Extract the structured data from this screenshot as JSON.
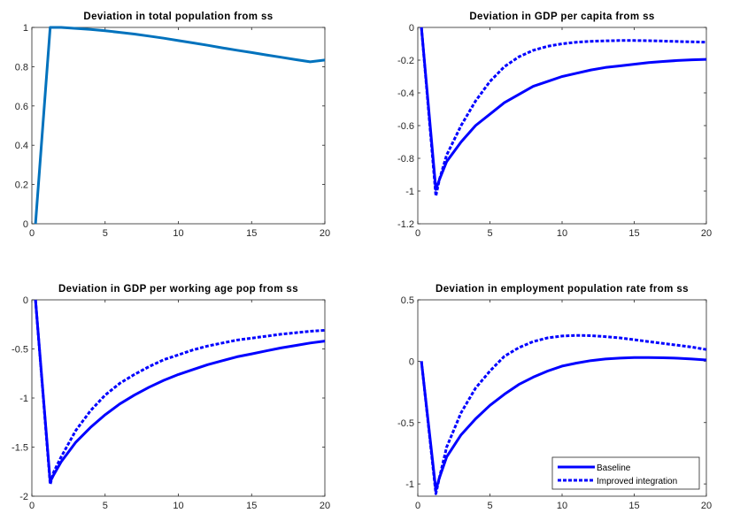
{
  "chart_data": [
    {
      "type": "line",
      "title": "Deviation in total population from ss",
      "xlabel": "",
      "ylabel": "",
      "xlim": [
        0,
        20
      ],
      "ylim": [
        0,
        1
      ],
      "xticks": [
        0,
        5,
        10,
        15,
        20
      ],
      "yticks": [
        0,
        0.2,
        0.4,
        0.6,
        0.8,
        1
      ],
      "yticklabels": [
        "0",
        "0.2",
        "0.4",
        "0.6",
        "0.8",
        "1"
      ],
      "grid": false,
      "series": [
        {
          "color": "#0072BD",
          "style": "solid",
          "points": [
            [
              0.25,
              0
            ],
            [
              1.25,
              1
            ],
            [
              2,
              1
            ],
            [
              3,
              0.995
            ],
            [
              4,
              0.99
            ],
            [
              5,
              0.983
            ],
            [
              6,
              0.975
            ],
            [
              7,
              0.966
            ],
            [
              8,
              0.956
            ],
            [
              9,
              0.945
            ],
            [
              10,
              0.933
            ],
            [
              11,
              0.921
            ],
            [
              12,
              0.909
            ],
            [
              13,
              0.896
            ],
            [
              14,
              0.884
            ],
            [
              15,
              0.872
            ],
            [
              16,
              0.86
            ],
            [
              17,
              0.848
            ],
            [
              18,
              0.836
            ],
            [
              19,
              0.825
            ],
            [
              20,
              0.834
            ]
          ]
        }
      ]
    },
    {
      "type": "line",
      "title": "Deviation in GDP per capita from ss",
      "xlabel": "",
      "ylabel": "",
      "xlim": [
        0,
        20
      ],
      "ylim": [
        -1.2,
        0
      ],
      "xticks": [
        0,
        5,
        10,
        15,
        20
      ],
      "yticks": [
        -1.2,
        -1,
        -0.8,
        -0.6,
        -0.4,
        -0.2,
        0
      ],
      "yticklabels": [
        "-1.2",
        "-1",
        "-0.8",
        "-0.6",
        "-0.4",
        "-0.2",
        "0"
      ],
      "grid": false,
      "series": [
        {
          "color": "#0000FF",
          "style": "solid",
          "points": [
            [
              0.25,
              0
            ],
            [
              1.25,
              -0.99
            ],
            [
              1.5,
              -0.93
            ],
            [
              2,
              -0.82
            ],
            [
              3,
              -0.7
            ],
            [
              4,
              -0.6
            ],
            [
              5,
              -0.53
            ],
            [
              6,
              -0.46
            ],
            [
              7,
              -0.41
            ],
            [
              8,
              -0.36
            ],
            [
              9,
              -0.33
            ],
            [
              10,
              -0.3
            ],
            [
              11,
              -0.28
            ],
            [
              12,
              -0.26
            ],
            [
              13,
              -0.245
            ],
            [
              14,
              -0.235
            ],
            [
              15,
              -0.225
            ],
            [
              16,
              -0.215
            ],
            [
              17,
              -0.208
            ],
            [
              18,
              -0.202
            ],
            [
              19,
              -0.198
            ],
            [
              20,
              -0.195
            ]
          ]
        },
        {
          "color": "#0000FF",
          "style": "dashed",
          "points": [
            [
              0.25,
              0
            ],
            [
              1.25,
              -1.03
            ],
            [
              1.5,
              -0.93
            ],
            [
              2,
              -0.78
            ],
            [
              3,
              -0.6
            ],
            [
              4,
              -0.45
            ],
            [
              5,
              -0.33
            ],
            [
              6,
              -0.24
            ],
            [
              7,
              -0.18
            ],
            [
              8,
              -0.14
            ],
            [
              9,
              -0.115
            ],
            [
              10,
              -0.1
            ],
            [
              11,
              -0.09
            ],
            [
              12,
              -0.085
            ],
            [
              13,
              -0.082
            ],
            [
              14,
              -0.08
            ],
            [
              15,
              -0.08
            ],
            [
              16,
              -0.081
            ],
            [
              17,
              -0.083
            ],
            [
              18,
              -0.086
            ],
            [
              19,
              -0.088
            ],
            [
              20,
              -0.09
            ]
          ]
        }
      ]
    },
    {
      "type": "line",
      "title": "Deviation in GDP per working age pop from ss",
      "xlabel": "",
      "ylabel": "",
      "xlim": [
        0,
        20
      ],
      "ylim": [
        -2,
        0
      ],
      "xticks": [
        0,
        5,
        10,
        15,
        20
      ],
      "yticks": [
        -2,
        -1.5,
        -1,
        -0.5,
        0
      ],
      "yticklabels": [
        "-2",
        "-1.5",
        "-1",
        "-0.5",
        "0"
      ],
      "grid": false,
      "series": [
        {
          "color": "#0000FF",
          "style": "solid",
          "points": [
            [
              0.25,
              0
            ],
            [
              1.25,
              -1.85
            ],
            [
              1.5,
              -1.78
            ],
            [
              2,
              -1.65
            ],
            [
              3,
              -1.45
            ],
            [
              4,
              -1.3
            ],
            [
              5,
              -1.17
            ],
            [
              6,
              -1.06
            ],
            [
              7,
              -0.97
            ],
            [
              8,
              -0.89
            ],
            [
              9,
              -0.82
            ],
            [
              10,
              -0.76
            ],
            [
              11,
              -0.71
            ],
            [
              12,
              -0.66
            ],
            [
              13,
              -0.62
            ],
            [
              14,
              -0.58
            ],
            [
              15,
              -0.55
            ],
            [
              16,
              -0.52
            ],
            [
              17,
              -0.49
            ],
            [
              18,
              -0.465
            ],
            [
              19,
              -0.44
            ],
            [
              20,
              -0.42
            ]
          ]
        },
        {
          "color": "#0000FF",
          "style": "dashed",
          "points": [
            [
              0.25,
              0
            ],
            [
              1.25,
              -1.88
            ],
            [
              1.5,
              -1.75
            ],
            [
              2,
              -1.6
            ],
            [
              3,
              -1.33
            ],
            [
              4,
              -1.13
            ],
            [
              5,
              -0.97
            ],
            [
              6,
              -0.85
            ],
            [
              7,
              -0.76
            ],
            [
              8,
              -0.68
            ],
            [
              9,
              -0.61
            ],
            [
              10,
              -0.56
            ],
            [
              11,
              -0.51
            ],
            [
              12,
              -0.47
            ],
            [
              13,
              -0.44
            ],
            [
              14,
              -0.41
            ],
            [
              15,
              -0.39
            ],
            [
              16,
              -0.37
            ],
            [
              17,
              -0.35
            ],
            [
              18,
              -0.335
            ],
            [
              19,
              -0.32
            ],
            [
              20,
              -0.31
            ]
          ]
        }
      ]
    },
    {
      "type": "line",
      "title": "Deviation in employment population rate from ss",
      "xlabel": "",
      "ylabel": "",
      "xlim": [
        0,
        20
      ],
      "ylim": [
        -1.1,
        0.5
      ],
      "xticks": [
        0,
        5,
        10,
        15,
        20
      ],
      "yticks": [
        -1,
        -0.5,
        0,
        0.5
      ],
      "yticklabels": [
        "-1",
        "-0.5",
        "0",
        "0.5"
      ],
      "grid": false,
      "legend": {
        "position": "bottom-right",
        "entries": [
          "Baseline",
          "Improved integration"
        ]
      },
      "series": [
        {
          "name": "Baseline",
          "color": "#0000FF",
          "style": "solid",
          "points": [
            [
              0.25,
              0
            ],
            [
              1.25,
              -1.05
            ],
            [
              1.5,
              -0.95
            ],
            [
              2,
              -0.78
            ],
            [
              3,
              -0.6
            ],
            [
              4,
              -0.47
            ],
            [
              5,
              -0.36
            ],
            [
              6,
              -0.27
            ],
            [
              7,
              -0.19
            ],
            [
              8,
              -0.13
            ],
            [
              9,
              -0.08
            ],
            [
              10,
              -0.04
            ],
            [
              11,
              -0.015
            ],
            [
              12,
              0.005
            ],
            [
              13,
              0.018
            ],
            [
              14,
              0.025
            ],
            [
              15,
              0.03
            ],
            [
              16,
              0.03
            ],
            [
              17,
              0.028
            ],
            [
              18,
              0.024
            ],
            [
              19,
              0.018
            ],
            [
              20,
              0.01
            ]
          ]
        },
        {
          "name": "Improved integration",
          "color": "#0000FF",
          "style": "dashed",
          "points": [
            [
              0.25,
              0
            ],
            [
              1.25,
              -1.08
            ],
            [
              1.5,
              -0.95
            ],
            [
              2,
              -0.7
            ],
            [
              3,
              -0.42
            ],
            [
              4,
              -0.22
            ],
            [
              5,
              -0.08
            ],
            [
              6,
              0.04
            ],
            [
              7,
              0.11
            ],
            [
              8,
              0.16
            ],
            [
              9,
              0.19
            ],
            [
              10,
              0.205
            ],
            [
              11,
              0.21
            ],
            [
              12,
              0.208
            ],
            [
              13,
              0.2
            ],
            [
              14,
              0.19
            ],
            [
              15,
              0.175
            ],
            [
              16,
              0.16
            ],
            [
              17,
              0.145
            ],
            [
              18,
              0.13
            ],
            [
              19,
              0.115
            ],
            [
              20,
              0.095
            ]
          ]
        }
      ]
    }
  ]
}
